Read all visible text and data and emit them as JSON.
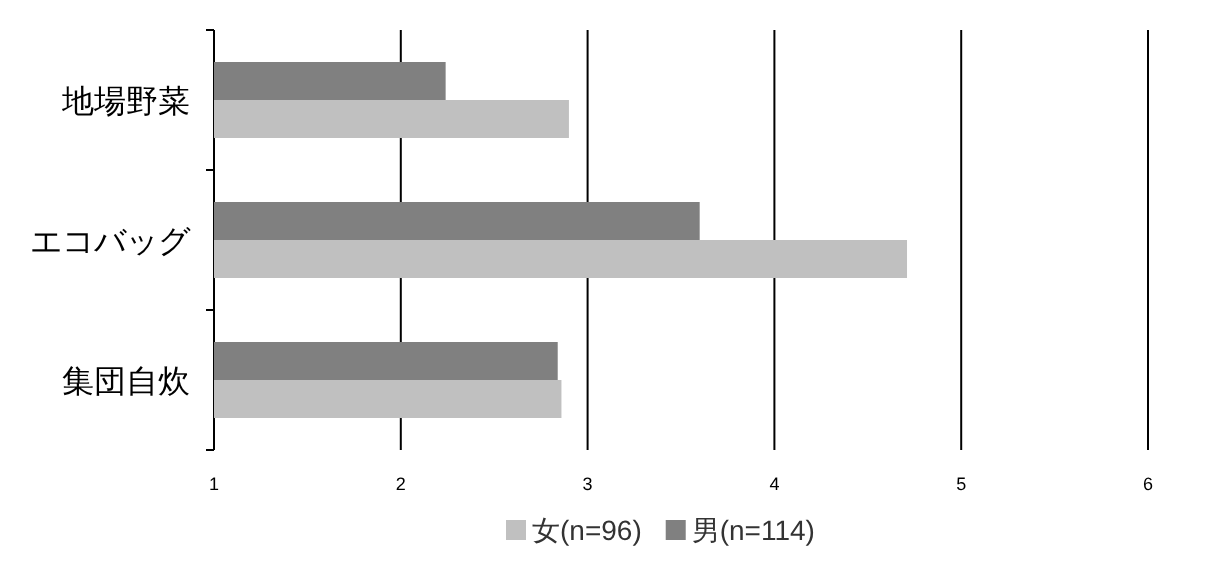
{
  "chart_data": {
    "type": "bar",
    "orientation": "horizontal",
    "categories": [
      "地場野菜",
      "エコバッグ",
      "集団自炊"
    ],
    "series": [
      {
        "name": "女(n=96)",
        "color": "#c0c0c0",
        "values": [
          2.9,
          4.71,
          2.86
        ]
      },
      {
        "name": "男(n=114)",
        "color": "#808080",
        "values": [
          2.24,
          3.6,
          2.84
        ]
      }
    ],
    "xlim": [
      1,
      6
    ],
    "xticks": [
      1,
      2,
      3,
      4,
      5,
      6
    ],
    "grid": "x",
    "legend": "bottom"
  }
}
